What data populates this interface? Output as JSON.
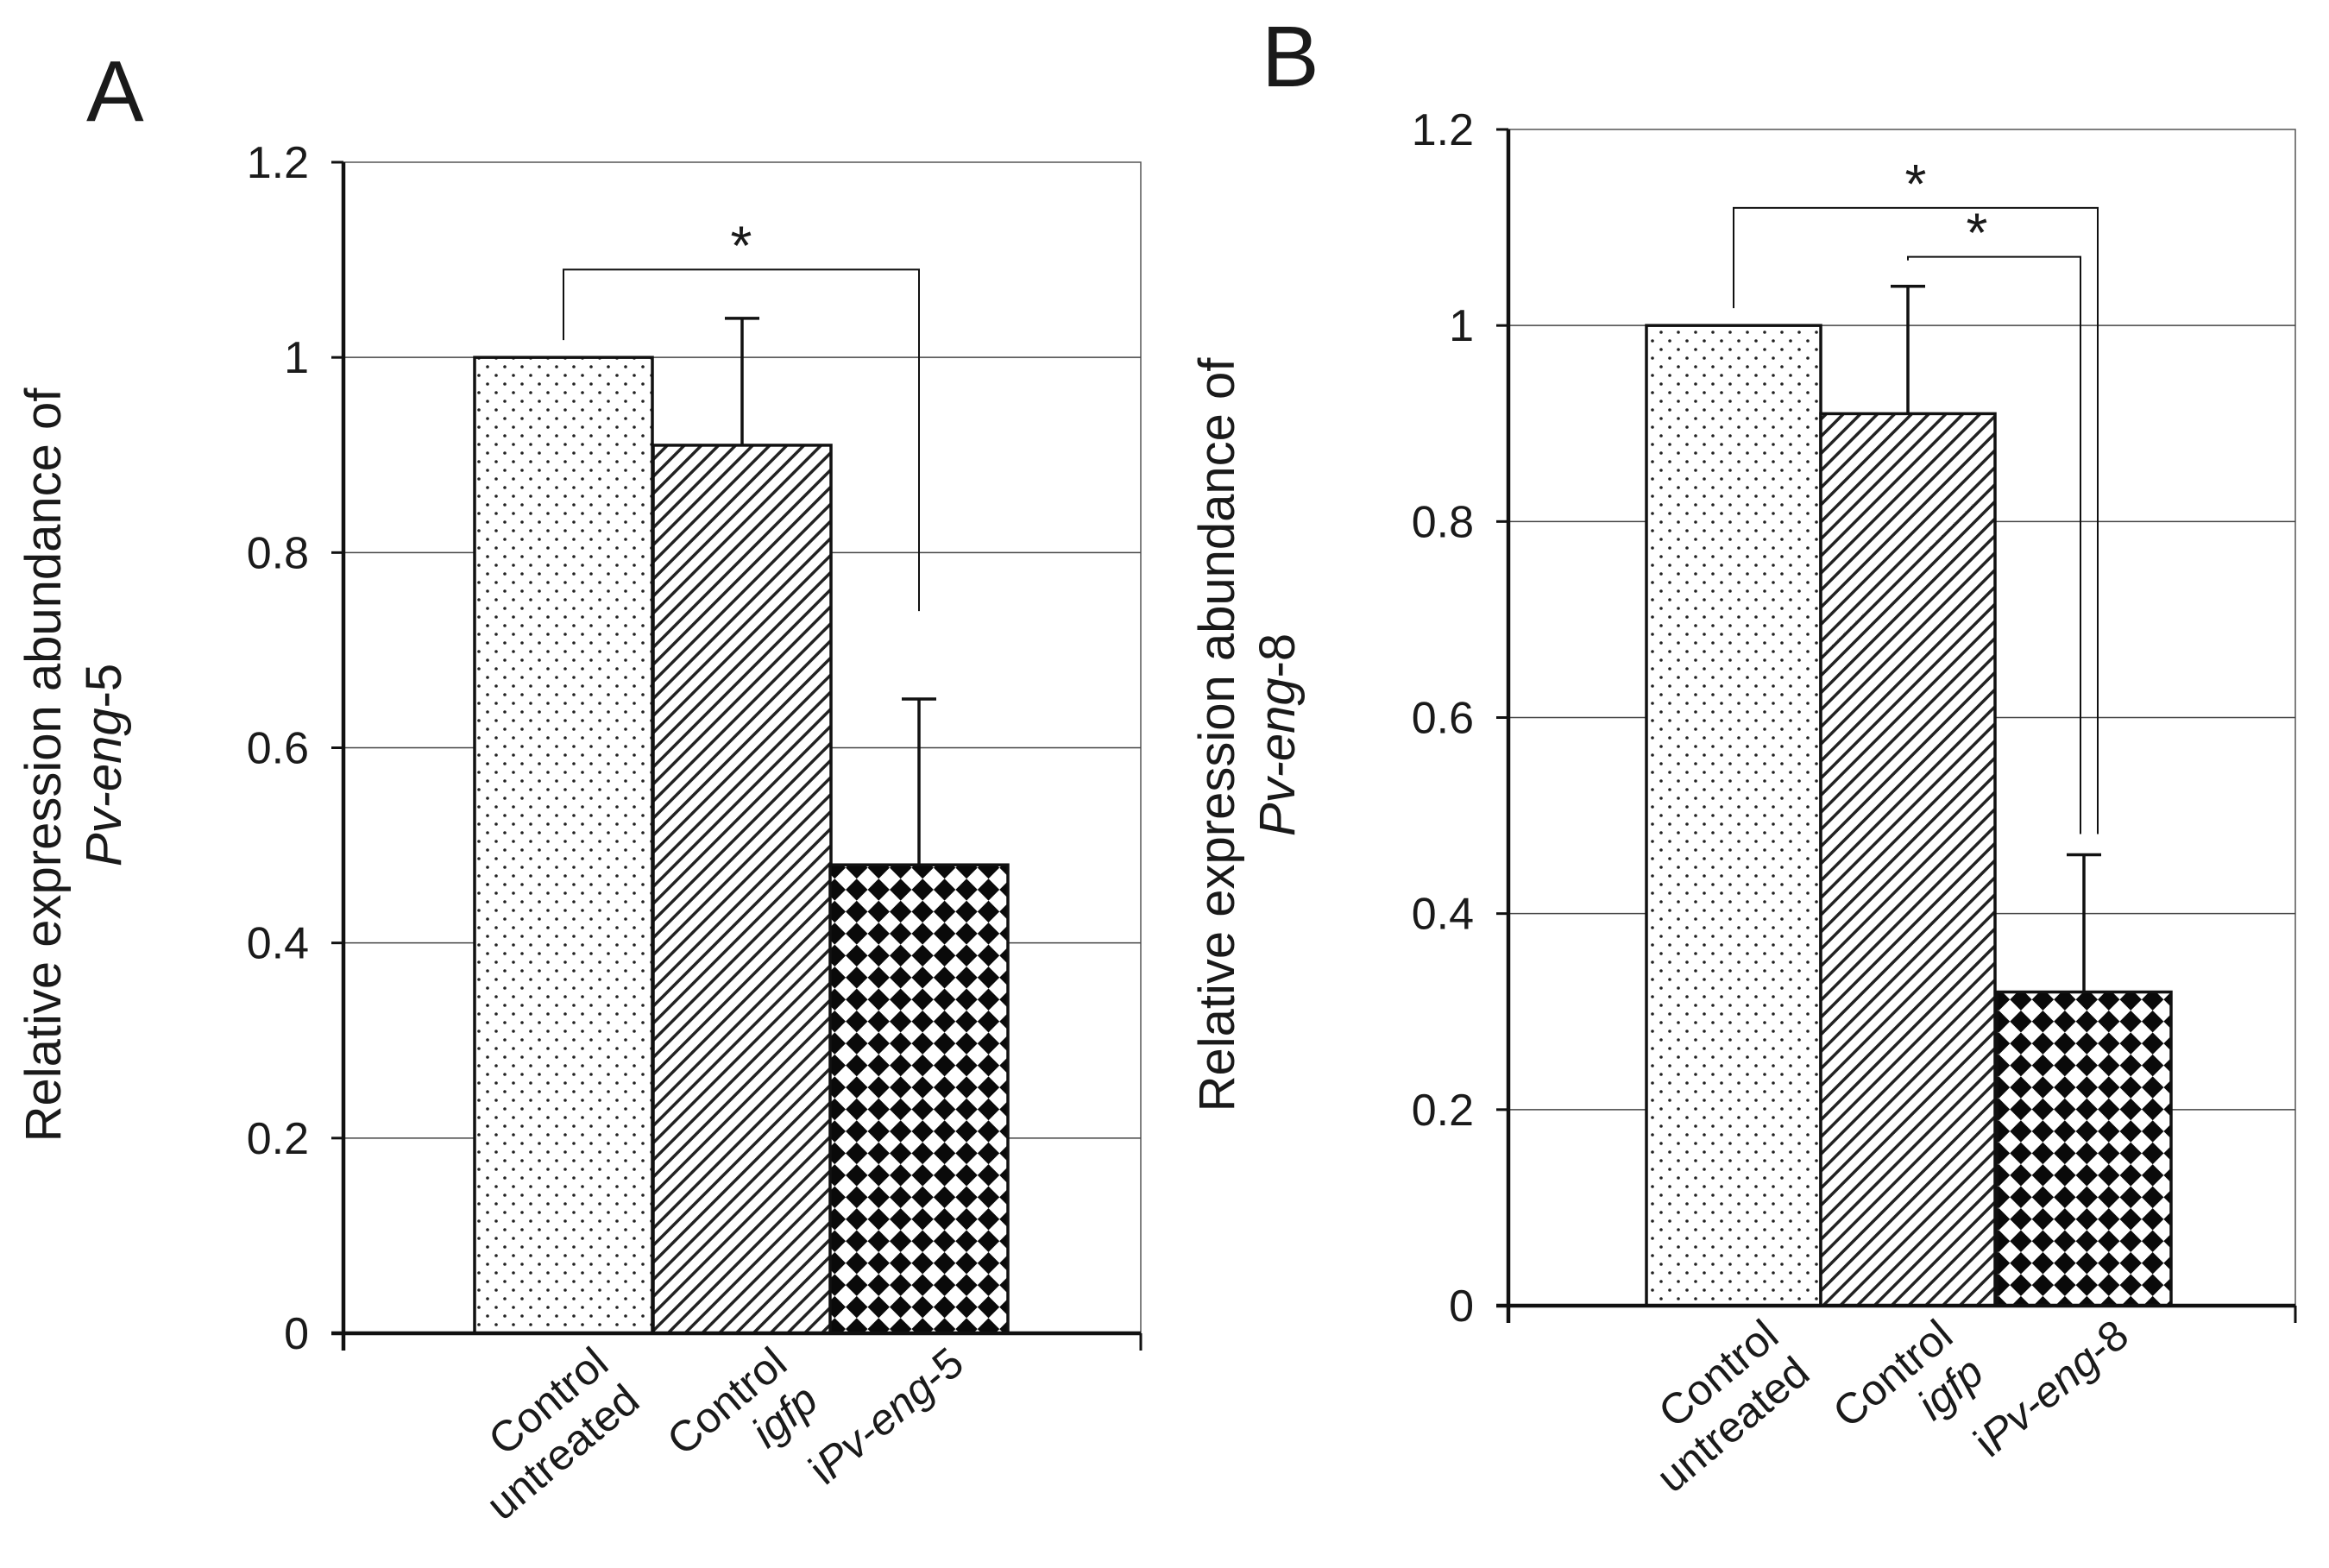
{
  "chart_data": [
    {
      "panel_label": "A",
      "type": "bar",
      "categories": [
        {
          "lines": [
            {
              "parts": [
                {
                  "t": "Control",
                  "i": false
                }
              ]
            },
            {
              "parts": [
                {
                  "t": "untreated",
                  "i": false
                }
              ]
            }
          ]
        },
        {
          "lines": [
            {
              "parts": [
                {
                  "t": "Control",
                  "i": false
                }
              ]
            },
            {
              "parts": [
                {
                  "t": "igfp",
                  "i": true
                }
              ]
            }
          ]
        },
        {
          "lines": [
            {
              "parts": [
                {
                  "t": "i",
                  "i": false
                },
                {
                  "t": "Pv-eng",
                  "i": true
                },
                {
                  "t": "-5",
                  "i": false
                }
              ]
            }
          ]
        }
      ],
      "values": [
        1.0,
        0.91,
        0.48
      ],
      "errors": [
        null,
        0.13,
        0.17
      ],
      "patterns": [
        "dots",
        "hatch",
        "checker"
      ],
      "ylim": [
        0,
        1.2
      ],
      "yticks": [
        "0",
        "0.2",
        "0.4",
        "0.6",
        "0.8",
        "1",
        "1.2"
      ],
      "ylabel": {
        "line1": "Relative  expression abundance of",
        "line2": [
          {
            "t": "Pv-eng",
            "i": true
          },
          {
            "t": "-5",
            "i": false
          }
        ]
      },
      "grid": "horizontal",
      "significance": [
        {
          "from": 0,
          "to": 2,
          "label": "*"
        }
      ]
    },
    {
      "panel_label": "B",
      "type": "bar",
      "categories": [
        {
          "lines": [
            {
              "parts": [
                {
                  "t": "Control",
                  "i": false
                }
              ]
            },
            {
              "parts": [
                {
                  "t": "untreated",
                  "i": false
                }
              ]
            }
          ]
        },
        {
          "lines": [
            {
              "parts": [
                {
                  "t": "Control",
                  "i": false
                }
              ]
            },
            {
              "parts": [
                {
                  "t": "igfp",
                  "i": true
                }
              ]
            }
          ]
        },
        {
          "lines": [
            {
              "parts": [
                {
                  "t": "i",
                  "i": false
                },
                {
                  "t": "Pv-eng",
                  "i": true
                },
                {
                  "t": "-8",
                  "i": false
                }
              ]
            }
          ]
        }
      ],
      "values": [
        1.0,
        0.91,
        0.32
      ],
      "errors": [
        null,
        0.13,
        0.14
      ],
      "patterns": [
        "dots",
        "hatch",
        "checker"
      ],
      "ylim": [
        0,
        1.2
      ],
      "yticks": [
        "0",
        "0.2",
        "0.4",
        "0.6",
        "0.8",
        "1",
        "1.2"
      ],
      "ylabel": {
        "line1": "Relative  expression abundance of",
        "line2": [
          {
            "t": "Pv-eng",
            "i": true
          },
          {
            "t": "-8",
            "i": false
          }
        ]
      },
      "grid": "horizontal",
      "significance": [
        {
          "from": 0,
          "to": 2,
          "label": "*"
        },
        {
          "from": 1,
          "to": 2,
          "label": "*"
        }
      ]
    }
  ]
}
